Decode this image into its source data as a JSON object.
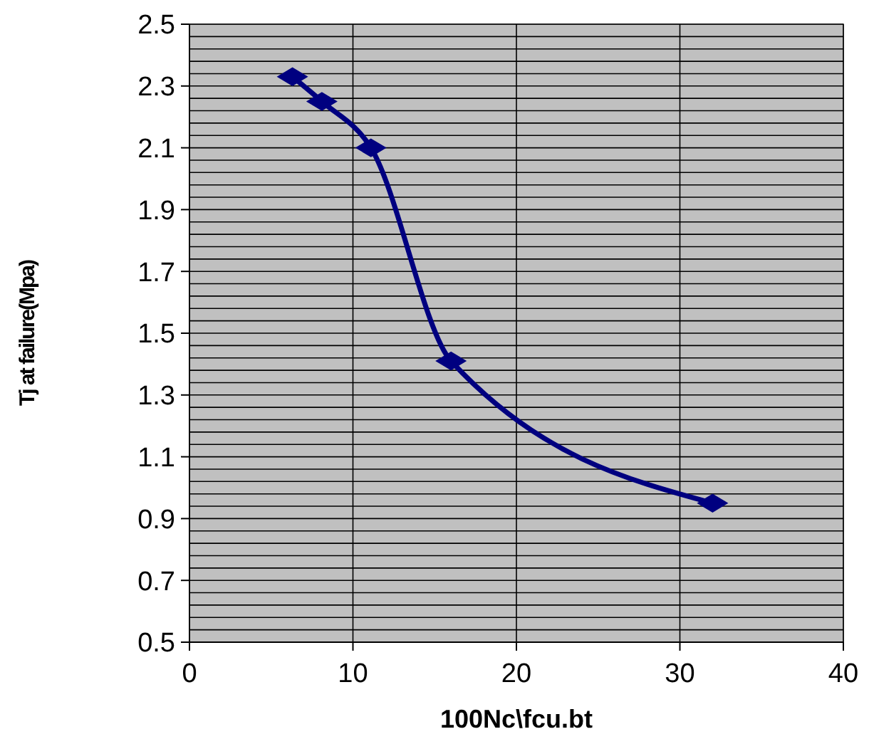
{
  "chart_data": {
    "type": "line",
    "xlabel": "100Nc\\fcu.bt",
    "ylabel": "Tj at failure(Mpa)",
    "xlim": [
      0,
      40
    ],
    "xticks": [
      0,
      10,
      20,
      30,
      40
    ],
    "ylim": [
      0.5,
      2.5
    ],
    "yticks": [
      0.5,
      {
        "value": 0.54,
        "label": null
      },
      {
        "value": 0.58,
        "label": null
      },
      {
        "value": 0.62,
        "label": null
      },
      {
        "value": 0.66,
        "label": null
      },
      0.7,
      {
        "value": 0.74,
        "label": null
      },
      {
        "value": 0.78,
        "label": null
      },
      {
        "value": 0.82,
        "label": null
      },
      {
        "value": 0.86,
        "label": null
      },
      0.9,
      {
        "value": 0.94,
        "label": null
      },
      {
        "value": 0.98,
        "label": null
      },
      {
        "value": 1.02,
        "label": null
      },
      {
        "value": 1.06,
        "label": null
      },
      1.1,
      {
        "value": 1.14,
        "label": null
      },
      {
        "value": 1.18,
        "label": null
      },
      {
        "value": 1.22,
        "label": null
      },
      {
        "value": 1.26,
        "label": null
      },
      1.3,
      {
        "value": 1.34,
        "label": null
      },
      {
        "value": 1.38,
        "label": null
      },
      {
        "value": 1.42,
        "label": null
      },
      {
        "value": 1.46,
        "label": null
      },
      1.5,
      {
        "value": 1.54,
        "label": null
      },
      {
        "value": 1.58,
        "label": null
      },
      {
        "value": 1.62,
        "label": null
      },
      {
        "value": 1.66,
        "label": null
      },
      1.7,
      {
        "value": 1.74,
        "label": null
      },
      {
        "value": 1.78,
        "label": null
      },
      {
        "value": 1.82,
        "label": null
      },
      {
        "value": 1.86,
        "label": null
      },
      1.9,
      {
        "value": 1.94,
        "label": null
      },
      {
        "value": 1.98,
        "label": null
      },
      {
        "value": 2.02,
        "label": null
      },
      {
        "value": 2.06,
        "label": null
      },
      2.1,
      {
        "value": 2.14,
        "label": null
      },
      {
        "value": 2.18,
        "label": null
      },
      {
        "value": 2.22,
        "label": null
      },
      {
        "value": 2.26,
        "label": null
      },
      2.3,
      {
        "value": 2.34,
        "label": null
      },
      {
        "value": 2.38,
        "label": null
      },
      {
        "value": 2.42,
        "label": null
      },
      {
        "value": 2.46,
        "label": null
      },
      2.5
    ],
    "grid": true,
    "marker": "diamond",
    "line_style": "solid",
    "series": [
      {
        "color": "#000080",
        "x": [
          6.3,
          8.1,
          11.1,
          16,
          32
        ],
        "values": [
          2.33,
          2.25,
          2.1,
          1.41,
          0.95
        ]
      }
    ]
  }
}
